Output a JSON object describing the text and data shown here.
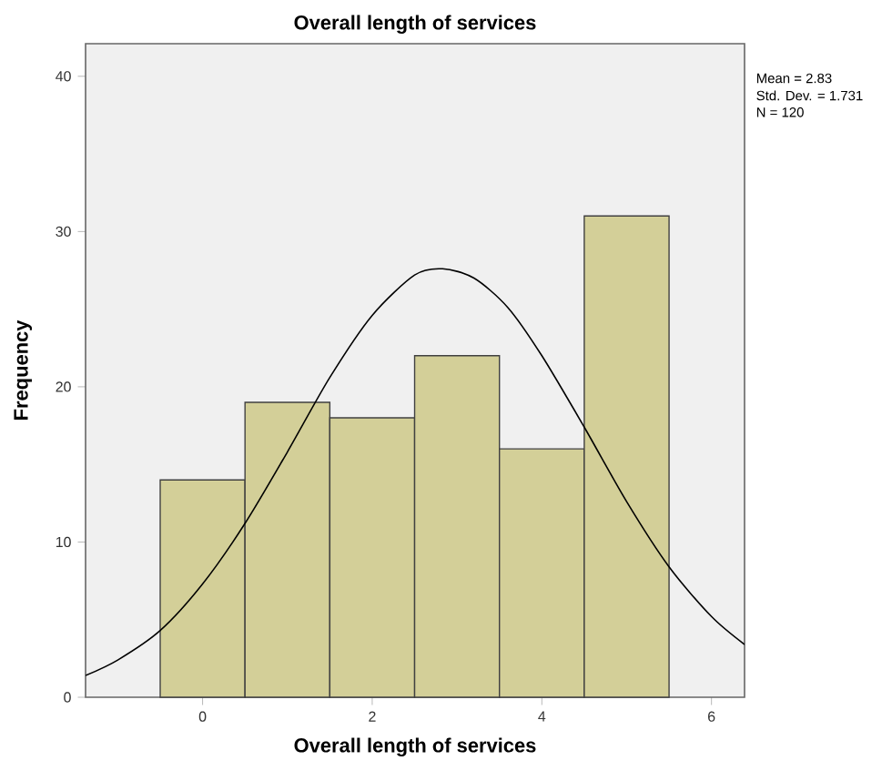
{
  "chart_data": {
    "type": "histogram",
    "title": "Overall length of services",
    "xlabel": "Overall length of services",
    "ylabel": "Frequency",
    "series": [
      {
        "color": "#d3cf98",
        "bins": [
          -0.5,
          0.5,
          1.5,
          2.5,
          3.5,
          4.5,
          5.5
        ],
        "values": [
          14,
          19,
          18,
          22,
          16,
          31
        ]
      },
      {
        "type": "line",
        "color": "#000000",
        "x": [
          -1.38,
          -1,
          -0.5,
          0,
          0.5,
          1,
          1.5,
          2,
          2.5,
          2.83,
          3.2,
          3.6,
          4,
          4.5,
          5,
          5.5,
          6,
          6.39
        ],
        "values": [
          1.4,
          2.4,
          4.3,
          7.3,
          11.2,
          15.8,
          20.6,
          24.6,
          27.2,
          27.6,
          27.0,
          25.1,
          22.0,
          17.4,
          12.6,
          8.4,
          5.2,
          3.4
        ]
      }
    ],
    "xlim": [
      -1.38,
      6.39
    ],
    "ylim": [
      0,
      42.1
    ],
    "xticks": [
      0,
      2,
      4,
      6
    ],
    "yticks": [
      0,
      10,
      20,
      30,
      40
    ],
    "annotations": [
      "Mean = 2.83",
      "Std. Dev. = 1.731",
      "N = 120"
    ],
    "grid": false
  }
}
